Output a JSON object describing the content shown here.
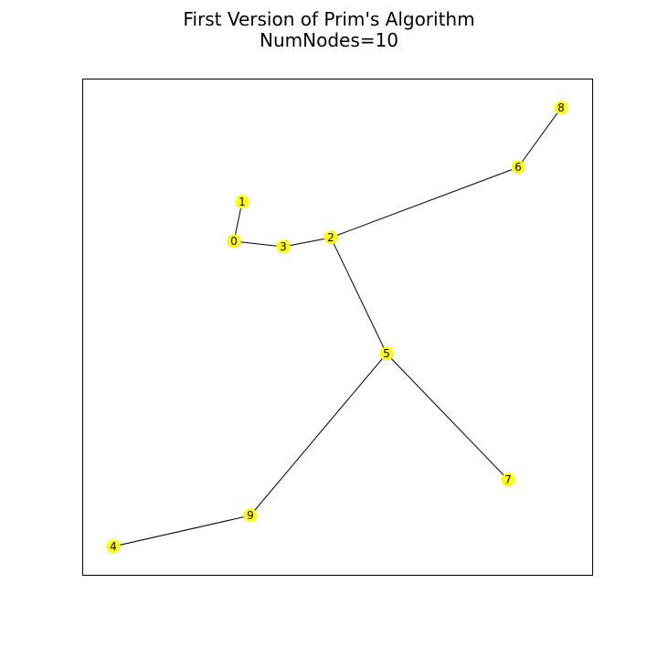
{
  "title": {
    "line1": "First Version of Prim's Algorithm",
    "line2": "NumNodes=10"
  },
  "graph": {
    "node_color": "#ffff00",
    "edge_color": "#000000",
    "nodes": [
      {
        "id": "0",
        "label": "0"
      },
      {
        "id": "1",
        "label": "1"
      },
      {
        "id": "2",
        "label": "2"
      },
      {
        "id": "3",
        "label": "3"
      },
      {
        "id": "4",
        "label": "4"
      },
      {
        "id": "5",
        "label": "5"
      },
      {
        "id": "6",
        "label": "6"
      },
      {
        "id": "7",
        "label": "7"
      },
      {
        "id": "8",
        "label": "8"
      },
      {
        "id": "9",
        "label": "9"
      }
    ],
    "edges": [
      [
        "1",
        "0"
      ],
      [
        "0",
        "3"
      ],
      [
        "3",
        "2"
      ],
      [
        "2",
        "6"
      ],
      [
        "6",
        "8"
      ],
      [
        "2",
        "5"
      ],
      [
        "5",
        "7"
      ],
      [
        "5",
        "9"
      ],
      [
        "9",
        "4"
      ]
    ]
  }
}
